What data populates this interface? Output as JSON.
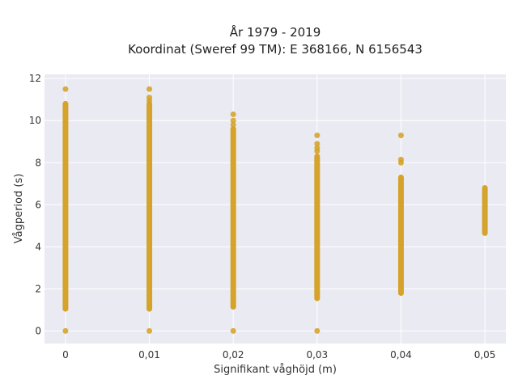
{
  "chart_data": {
    "type": "scatter",
    "title": "År 1979 - 2019",
    "subtitle": "Koordinat (Sweref 99 TM): E 368166, N 6156543",
    "xlabel": "Signifikant våghöjd (m)",
    "ylabel": "Vågperiod (s)",
    "xlim": [
      -0.0025,
      0.0525
    ],
    "ylim": [
      -0.6,
      12.2
    ],
    "x_ticks": [
      0,
      0.01,
      0.02,
      0.03,
      0.04,
      0.05
    ],
    "x_tick_labels": [
      "0",
      "0,01",
      "0,02",
      "0,03",
      "0,04",
      "0,05"
    ],
    "y_ticks": [
      0,
      2,
      4,
      6,
      8,
      10,
      12
    ],
    "y_tick_labels": [
      "0",
      "2",
      "4",
      "6",
      "8",
      "10",
      "12"
    ],
    "grid": true,
    "marker_color": "#d4a020",
    "plot_background": "#eaeaf2",
    "grid_color": "#ffffff",
    "groups": [
      {
        "x": 0,
        "bands": [
          [
            1.05,
            10.8
          ]
        ],
        "points": [
          0,
          11.5
        ]
      },
      {
        "x": 0.01,
        "bands": [
          [
            1.05,
            10.8
          ]
        ],
        "points": [
          0,
          11.5,
          11.1,
          10.95
        ]
      },
      {
        "x": 0.02,
        "bands": [
          [
            1.15,
            9.6
          ]
        ],
        "points": [
          0,
          10.3,
          10.0,
          9.8
        ]
      },
      {
        "x": 0.03,
        "bands": [
          [
            1.55,
            8.3
          ]
        ],
        "points": [
          0,
          9.3,
          8.9,
          8.7,
          8.55
        ]
      },
      {
        "x": 0.04,
        "bands": [
          [
            1.8,
            7.3
          ]
        ],
        "points": [
          9.3,
          8.15,
          8.0
        ]
      },
      {
        "x": 0.05,
        "bands": [
          [
            4.65,
            6.8
          ]
        ],
        "points": []
      }
    ]
  }
}
